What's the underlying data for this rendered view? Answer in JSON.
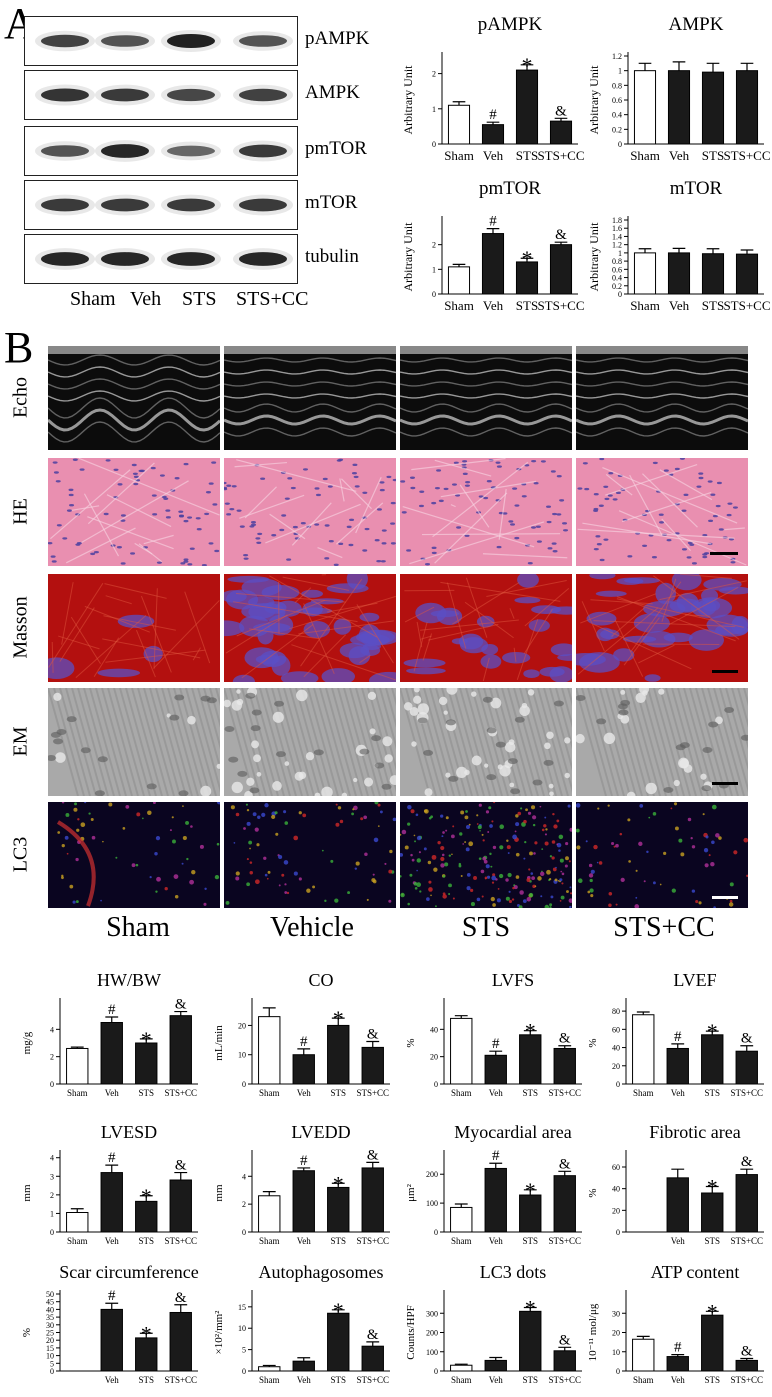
{
  "figure": {
    "panel_a_label": "A",
    "panel_b_label": "B",
    "blots": {
      "rows": [
        "pAMPK",
        "AMPK",
        "pmTOR",
        "mTOR",
        "tubulin"
      ],
      "lanes": [
        "Sham",
        "Veh",
        "STS",
        "STS+CC"
      ]
    },
    "micrographs": {
      "rows": [
        "Echo",
        "HE",
        "Masson",
        "EM",
        "LC3"
      ],
      "columns": [
        "Sham",
        "Vehicle",
        "STS",
        "STS+CC"
      ]
    }
  },
  "chart_data": [
    {
      "id": "pampk",
      "type": "bar",
      "title": "pAMPK",
      "ylabel": "Arbitrary Unit",
      "categories": [
        "Sham",
        "Veh",
        "STS",
        "STS+CC"
      ],
      "values": [
        1.1,
        0.55,
        2.1,
        0.65
      ],
      "errors": [
        0.1,
        0.07,
        0.15,
        0.08
      ],
      "ylim": [
        0,
        2.5
      ],
      "yticks": [
        0,
        1,
        2
      ],
      "annotations": [
        "",
        "#",
        "*",
        "&"
      ],
      "fills": [
        "#ffffff",
        "#1a1a1a",
        "#1a1a1a",
        "#1a1a1a"
      ]
    },
    {
      "id": "ampk",
      "type": "bar",
      "title": "AMPK",
      "ylabel": "Arbitrary Unit",
      "categories": [
        "Sham",
        "Veh",
        "STS",
        "STS+CC"
      ],
      "values": [
        1.0,
        1.0,
        0.98,
        1.0
      ],
      "errors": [
        0.1,
        0.12,
        0.12,
        0.1
      ],
      "ylim": [
        0,
        1.2
      ],
      "yticks": [
        0,
        0.2,
        0.4,
        0.6,
        0.8,
        1.0,
        1.2
      ],
      "annotations": [
        "",
        "",
        "",
        ""
      ],
      "fills": [
        "#ffffff",
        "#1a1a1a",
        "#1a1a1a",
        "#1a1a1a"
      ]
    },
    {
      "id": "pmtor",
      "type": "bar",
      "title": "pmTOR",
      "ylabel": "Arbitrary Unit",
      "categories": [
        "Sham",
        "Veh",
        "STS",
        "STS+CC"
      ],
      "values": [
        1.1,
        2.45,
        1.3,
        2.0
      ],
      "errors": [
        0.1,
        0.2,
        0.15,
        0.1
      ],
      "ylim": [
        0,
        3
      ],
      "yticks": [
        0,
        1,
        2
      ],
      "annotations": [
        "",
        "#",
        "*",
        "&"
      ],
      "fills": [
        "#ffffff",
        "#1a1a1a",
        "#1a1a1a",
        "#1a1a1a"
      ]
    },
    {
      "id": "mtor",
      "type": "bar",
      "title": "mTOR",
      "ylabel": "Arbitrary Unit",
      "categories": [
        "Sham",
        "Veh",
        "STS",
        "STS+CC"
      ],
      "values": [
        1.0,
        1.0,
        0.98,
        0.97
      ],
      "errors": [
        0.1,
        0.11,
        0.12,
        0.1
      ],
      "ylim": [
        0,
        1.8
      ],
      "yticks": [
        0,
        0.2,
        0.4,
        0.6,
        0.8,
        1.0,
        1.2,
        1.4,
        1.6,
        1.8
      ],
      "annotations": [
        "",
        "",
        "",
        ""
      ],
      "fills": [
        "#ffffff",
        "#1a1a1a",
        "#1a1a1a",
        "#1a1a1a"
      ]
    },
    {
      "id": "hwbw",
      "type": "bar",
      "title": "HW/BW",
      "ylabel": "mg/g",
      "categories": [
        "Sham",
        "Veh",
        "STS",
        "STS+CC"
      ],
      "values": [
        2.6,
        4.5,
        3.0,
        5.0
      ],
      "errors": [
        0.1,
        0.4,
        0.3,
        0.3
      ],
      "ylim": [
        0,
        6
      ],
      "yticks": [
        0,
        2,
        4
      ],
      "annotations": [
        "",
        "#",
        "*",
        "&"
      ],
      "fills": [
        "#ffffff",
        "#1a1a1a",
        "#1a1a1a",
        "#1a1a1a"
      ]
    },
    {
      "id": "co",
      "type": "bar",
      "title": "CO",
      "ylabel": "mL/min",
      "categories": [
        "Sham",
        "Veh",
        "STS",
        "STS+CC"
      ],
      "values": [
        23,
        10,
        20,
        12.5
      ],
      "errors": [
        3,
        2,
        2.5,
        2
      ],
      "ylim": [
        0,
        28
      ],
      "yticks": [
        0,
        10,
        20
      ],
      "annotations": [
        "",
        "#",
        "*",
        "&"
      ],
      "fills": [
        "#ffffff",
        "#1a1a1a",
        "#1a1a1a",
        "#1a1a1a"
      ]
    },
    {
      "id": "lvfs",
      "type": "bar",
      "title": "LVFS",
      "ylabel": "%",
      "categories": [
        "Sham",
        "Veh",
        "STS",
        "STS+CC"
      ],
      "values": [
        48,
        21,
        36,
        26
      ],
      "errors": [
        2,
        3,
        3,
        2
      ],
      "ylim": [
        0,
        60
      ],
      "yticks": [
        0,
        20,
        40
      ],
      "annotations": [
        "",
        "#",
        "*",
        "&"
      ],
      "fills": [
        "#ffffff",
        "#1a1a1a",
        "#1a1a1a",
        "#1a1a1a"
      ]
    },
    {
      "id": "lvef",
      "type": "bar",
      "title": "LVEF",
      "ylabel": "%",
      "categories": [
        "Sham",
        "Veh",
        "STS",
        "STS+CC"
      ],
      "values": [
        76,
        39,
        54,
        36
      ],
      "errors": [
        3,
        5,
        4,
        6
      ],
      "ylim": [
        0,
        90
      ],
      "yticks": [
        0,
        20,
        40,
        60,
        80
      ],
      "annotations": [
        "",
        "#",
        "*",
        "&"
      ],
      "fills": [
        "#ffffff",
        "#1a1a1a",
        "#1a1a1a",
        "#1a1a1a"
      ]
    },
    {
      "id": "lvesd",
      "type": "bar",
      "title": "LVESD",
      "ylabel": "mm",
      "categories": [
        "Sham",
        "Veh",
        "STS",
        "STS+CC"
      ],
      "values": [
        1.05,
        3.2,
        1.65,
        2.8
      ],
      "errors": [
        0.2,
        0.4,
        0.3,
        0.4
      ],
      "ylim": [
        0,
        4.2
      ],
      "yticks": [
        0,
        1,
        2,
        3,
        4
      ],
      "annotations": [
        "",
        "#",
        "*",
        "&"
      ],
      "fills": [
        "#ffffff",
        "#1a1a1a",
        "#1a1a1a",
        "#1a1a1a"
      ]
    },
    {
      "id": "lvedd",
      "type": "bar",
      "title": "LVEDD",
      "ylabel": "mm",
      "categories": [
        "Sham",
        "Veh",
        "STS",
        "STS+CC"
      ],
      "values": [
        2.6,
        4.4,
        3.2,
        4.6
      ],
      "errors": [
        0.3,
        0.2,
        0.3,
        0.4
      ],
      "ylim": [
        0,
        5.6
      ],
      "yticks": [
        0,
        2,
        4
      ],
      "annotations": [
        "",
        "#",
        "*",
        "&"
      ],
      "fills": [
        "#ffffff",
        "#1a1a1a",
        "#1a1a1a",
        "#1a1a1a"
      ]
    },
    {
      "id": "myoarea",
      "type": "bar",
      "title": "Myocardial area",
      "ylabel": "μm²",
      "categories": [
        "Sham",
        "Veh",
        "STS",
        "STS+CC"
      ],
      "values": [
        85,
        220,
        128,
        195
      ],
      "errors": [
        12,
        18,
        18,
        15
      ],
      "ylim": [
        0,
        270
      ],
      "yticks": [
        0,
        100,
        200
      ],
      "annotations": [
        "",
        "#",
        "*",
        "&"
      ],
      "fills": [
        "#ffffff",
        "#1a1a1a",
        "#1a1a1a",
        "#1a1a1a"
      ]
    },
    {
      "id": "fibarea",
      "type": "bar",
      "title": "Fibrotic area",
      "ylabel": "%",
      "categories": [
        "Veh",
        "STS",
        "STS+CC"
      ],
      "values": [
        50,
        36,
        53
      ],
      "errors": [
        8,
        6,
        5
      ],
      "ylim": [
        0,
        72
      ],
      "yticks": [
        0,
        20,
        40,
        60
      ],
      "annotations": [
        "",
        "*",
        "&"
      ],
      "fills": [
        "#1a1a1a",
        "#1a1a1a",
        "#1a1a1a"
      ]
    },
    {
      "id": "scar",
      "type": "bar",
      "title": "Scar circumference",
      "ylabel": "%",
      "categories": [
        "Veh",
        "STS",
        "STS+CC"
      ],
      "values": [
        40,
        21.5,
        38
      ],
      "errors": [
        4,
        3,
        5
      ],
      "ylim": [
        0,
        50
      ],
      "yticks": [
        0,
        5,
        10,
        15,
        20,
        25,
        30,
        35,
        40,
        45,
        50
      ],
      "annotations": [
        "#",
        "*",
        "&"
      ],
      "fills": [
        "#1a1a1a",
        "#1a1a1a",
        "#1a1a1a"
      ]
    },
    {
      "id": "autophago",
      "type": "bar",
      "title": "Autophagosomes",
      "ylabel": "×10²/mm²",
      "categories": [
        "Sham",
        "Veh",
        "STS",
        "STS+CC"
      ],
      "values": [
        1.0,
        2.3,
        13.5,
        5.8
      ],
      "errors": [
        0.3,
        0.8,
        0.8,
        1.0
      ],
      "ylim": [
        0,
        18
      ],
      "yticks": [
        0,
        5,
        10,
        15
      ],
      "annotations": [
        "",
        "",
        "*",
        "&"
      ],
      "fills": [
        "#ffffff",
        "#1a1a1a",
        "#1a1a1a",
        "#1a1a1a"
      ]
    },
    {
      "id": "lc3dots",
      "type": "bar",
      "title": "LC3 dots",
      "ylabel": "Counts/HPF",
      "categories": [
        "Sham",
        "Veh",
        "STS",
        "STS+CC"
      ],
      "values": [
        30,
        55,
        310,
        105
      ],
      "errors": [
        5,
        15,
        20,
        18
      ],
      "ylim": [
        0,
        400
      ],
      "yticks": [
        0,
        100,
        200,
        300
      ],
      "annotations": [
        "",
        "",
        "*",
        "&"
      ],
      "fills": [
        "#ffffff",
        "#1a1a1a",
        "#1a1a1a",
        "#1a1a1a"
      ]
    },
    {
      "id": "atp",
      "type": "bar",
      "title": "ATP content",
      "ylabel": "10⁻¹¹ mol/μg",
      "categories": [
        "Sham",
        "Veh",
        "STS",
        "STS+CC"
      ],
      "values": [
        16.5,
        7.5,
        29,
        5.5
      ],
      "errors": [
        1.5,
        1.0,
        2.0,
        1.0
      ],
      "ylim": [
        0,
        40
      ],
      "yticks": [
        0,
        10,
        20,
        30
      ],
      "annotations": [
        "",
        "#",
        "*",
        "&"
      ],
      "fills": [
        "#ffffff",
        "#1a1a1a",
        "#1a1a1a",
        "#1a1a1a"
      ]
    }
  ]
}
